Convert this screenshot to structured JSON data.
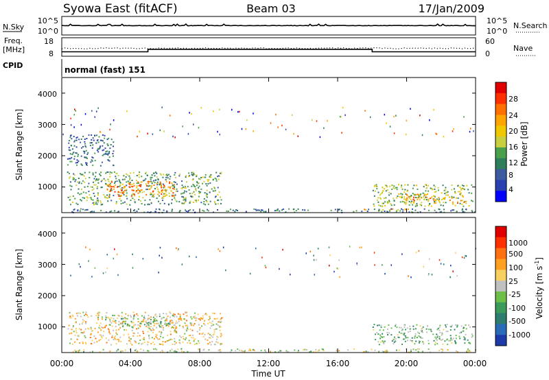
{
  "header": {
    "title": "Syowa East (fitACF)",
    "beam": "Beam 03",
    "date": "17/Jan/2009"
  },
  "top_panels": {
    "nsky_label": "N.Sky",
    "nsky_ticks": [
      "10^5",
      "10^0"
    ],
    "nsearch_label": "N.Search",
    "nsearch_ticks": [
      "10^5",
      "10^0"
    ],
    "freq_label_1": "Freq.",
    "freq_label_2": "[MHz]",
    "freq_ticks": [
      "18",
      "8"
    ],
    "nave_label": "Nave",
    "nave_ticks": [
      "60",
      "0"
    ],
    "cpid_label": "CPID",
    "cpid_value": "normal (fast) 151"
  },
  "axes": {
    "ylabel": "Slant Range [km]",
    "yticks": [
      "4000",
      "3000",
      "2000",
      "1000"
    ],
    "xlabel": "Time UT",
    "xticks": [
      "00:00",
      "04:00",
      "08:00",
      "12:00",
      "16:00",
      "20:00",
      "00:00"
    ]
  },
  "colorbars": {
    "power": {
      "label": "Power [dB]",
      "ticks": [
        "28",
        "24",
        "20",
        "16",
        "12",
        "8",
        "4"
      ],
      "colors": [
        "#0000ff",
        "#2a3fb0",
        "#3c5aa0",
        "#2e7d5b",
        "#4aa04a",
        "#c8d040",
        "#f0c800",
        "#ffa500",
        "#ff7000",
        "#ff3000",
        "#e00000"
      ]
    },
    "velocity": {
      "label": "Velocity [m s",
      "label_sup": "-1",
      "label_end": "]",
      "ticks": [
        "1000",
        "500",
        "100",
        "25",
        "-25",
        "-100",
        "-500",
        "-1000"
      ],
      "colors": [
        "#1c3aa8",
        "#2a6bb8",
        "#2e7d6e",
        "#3c9a5a",
        "#6cc04a",
        "#c0c0c0",
        "#f8d060",
        "#ffa020",
        "#ff7010",
        "#ff3000",
        "#e00000"
      ]
    }
  },
  "chart_data": [
    {
      "type": "line",
      "title": "N.Sky / N.Search",
      "x": [
        "00:00",
        "04:00",
        "05:00",
        "08:00",
        "12:00",
        "16:00",
        "18:00",
        "20:00",
        "24:00"
      ],
      "series": [
        {
          "name": "N.Sky",
          "values": [
            3.0,
            3.0,
            3.0,
            3.0,
            3.0,
            3.0,
            3.0,
            3.0,
            3.0
          ]
        }
      ]
    },
    {
      "type": "line",
      "title": "Freq. [MHz] / Nave",
      "x": [
        "00:00",
        "05:00",
        "05:00",
        "18:00",
        "18:00",
        "24:00"
      ],
      "series": [
        {
          "name": "Freq.",
          "values": [
            10.5,
            10.5,
            12.5,
            12.5,
            10.5,
            10.5
          ]
        },
        {
          "name": "Nave",
          "values": [
            33,
            33,
            33,
            33,
            33,
            33
          ]
        }
      ]
    },
    {
      "type": "heatmap",
      "title": "Power [dB]",
      "xlabel": "Time UT",
      "ylabel": "Slant Range [km]",
      "xlim": [
        0,
        24
      ],
      "ylim": [
        180,
        4500
      ],
      "zlim": [
        0,
        30
      ],
      "clusters": [
        {
          "t": [
            0.3,
            9.3
          ],
          "r": [
            450,
            1500
          ],
          "value": 12
        },
        {
          "t": [
            2.5,
            6.5
          ],
          "r": [
            700,
            1200
          ],
          "value": 22
        },
        {
          "t": [
            0.3,
            3.0
          ],
          "r": [
            1700,
            2700
          ],
          "value": 8
        },
        {
          "t": [
            18.0,
            23.8
          ],
          "r": [
            400,
            1100
          ],
          "value": 14
        },
        {
          "t": [
            19.5,
            23.5
          ],
          "r": [
            500,
            800
          ],
          "value": 20
        },
        {
          "t": [
            17.5,
            20.5
          ],
          "r": [
            250,
            320
          ],
          "value": 18
        },
        {
          "t": [
            0.5,
            24.0
          ],
          "r": [
            200,
            320
          ],
          "value": 8
        }
      ]
    },
    {
      "type": "heatmap",
      "title": "Velocity [m s-1]",
      "xlabel": "Time UT",
      "ylabel": "Slant Range [km]",
      "xlim": [
        0,
        24
      ],
      "ylim": [
        180,
        4500
      ],
      "zlim": [
        -1000,
        1000
      ],
      "clusters": [
        {
          "t": [
            0.3,
            9.3
          ],
          "r": [
            450,
            1500
          ],
          "value": -150
        },
        {
          "t": [
            2.5,
            6.5
          ],
          "r": [
            1000,
            1400
          ],
          "value": 150
        },
        {
          "t": [
            18.0,
            23.8
          ],
          "r": [
            450,
            1100
          ],
          "value": 200
        },
        {
          "t": [
            0.5,
            24.0
          ],
          "r": [
            200,
            320
          ],
          "value": 15
        }
      ]
    }
  ]
}
